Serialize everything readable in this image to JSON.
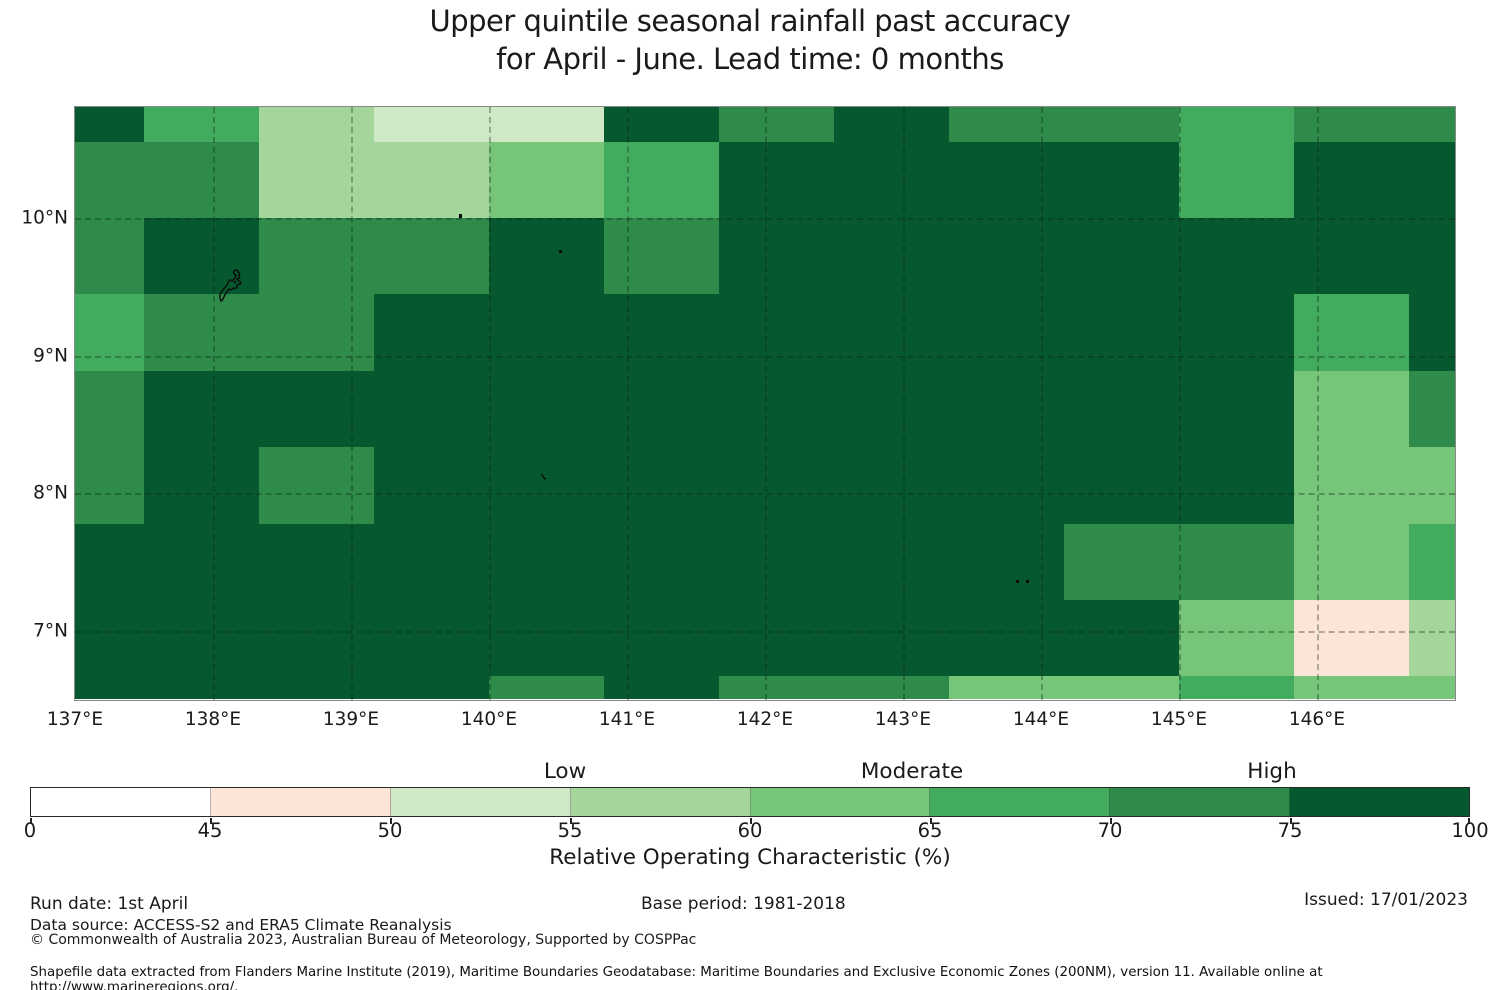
{
  "title": {
    "line1": "Upper quintile seasonal rainfall past accuracy",
    "line2": "for April - June. Lead time: 0 months"
  },
  "chart_data": {
    "type": "heatmap",
    "title": "Upper quintile seasonal rainfall past accuracy for April - June. Lead time: 0 months",
    "variable": "Relative Operating Characteristic (%)",
    "x_tick_labels": [
      "137°E",
      "138°E",
      "139°E",
      "140°E",
      "141°E",
      "142°E",
      "143°E",
      "144°E",
      "145°E",
      "146°E"
    ],
    "y_tick_labels": [
      "10°N",
      "9°N",
      "8°N",
      "7°N"
    ],
    "x_tick_lons_deg": [
      137,
      138,
      139,
      140,
      141,
      142,
      143,
      144,
      145,
      146
    ],
    "y_tick_lats_deg": [
      10,
      9,
      8,
      7
    ],
    "lon_cell_edges_deg": [
      137.0,
      137.5,
      138.333,
      139.167,
      140.0,
      140.833,
      141.667,
      142.5,
      143.333,
      144.167,
      145.0,
      145.833,
      146.667,
      147.0
    ],
    "lat_cell_edges_deg": [
      10.81,
      10.556,
      10.0,
      9.444,
      8.889,
      8.333,
      7.778,
      7.222,
      6.667,
      6.5
    ],
    "bin_ranges_roc_percent": [
      "0-45",
      "45-50",
      "50-55",
      "55-60",
      "60-65",
      "65-70",
      "70-75",
      "75-100"
    ],
    "bin_colors": [
      "#ffffff",
      "#fce5d7",
      "#cfe9c6",
      "#a4d69c",
      "#77c578",
      "#42ab5e",
      "#2e8b4a",
      "#06592e"
    ],
    "grid_bin_indices": [
      [
        7,
        5,
        3,
        2,
        2,
        7,
        6,
        7,
        6,
        6,
        5,
        6,
        6
      ],
      [
        6,
        6,
        3,
        3,
        4,
        5,
        7,
        7,
        7,
        7,
        5,
        7,
        7
      ],
      [
        6,
        7,
        6,
        6,
        7,
        6,
        7,
        7,
        7,
        7,
        7,
        7,
        7
      ],
      [
        5,
        6,
        6,
        7,
        7,
        7,
        7,
        7,
        7,
        7,
        7,
        5,
        7
      ],
      [
        6,
        7,
        7,
        7,
        7,
        7,
        7,
        7,
        7,
        7,
        7,
        4,
        6
      ],
      [
        6,
        7,
        6,
        7,
        7,
        7,
        7,
        7,
        7,
        7,
        7,
        4,
        4
      ],
      [
        7,
        7,
        7,
        7,
        7,
        7,
        7,
        7,
        7,
        6,
        6,
        4,
        5
      ],
      [
        7,
        7,
        7,
        7,
        7,
        7,
        7,
        7,
        7,
        7,
        4,
        1,
        3
      ],
      [
        7,
        7,
        7,
        7,
        6,
        7,
        6,
        6,
        4,
        4,
        5,
        4,
        4
      ]
    ],
    "grid_on": true,
    "legend_position": "bottom colorbar"
  },
  "colorbar": {
    "tick_labels": [
      "0",
      "45",
      "50",
      "55",
      "60",
      "65",
      "70",
      "75",
      "100"
    ],
    "category_labels": [
      "Low",
      "Moderate",
      "High"
    ],
    "title": "Relative Operating Characteristic (%)"
  },
  "footer": {
    "run_date": "Run date: 1st April",
    "base_period": "Base period: 1981-2018",
    "issued": "Issued: 17/01/2023",
    "data_source": "Data source: ACCESS-S2 and ERA5 Climate Reanalysis",
    "copyright": "© Commonwealth of Australia 2023, Australian Bureau of Meteorology, Supported by COSPPac",
    "shapefile": "Shapefile data extracted from Flanders Marine Institute (2019), Maritime Boundaries Geodatabase: Maritime Boundaries and Exclusive Economic Zones (200NM), version 11. Available online at http://www.marineregions.org/."
  }
}
